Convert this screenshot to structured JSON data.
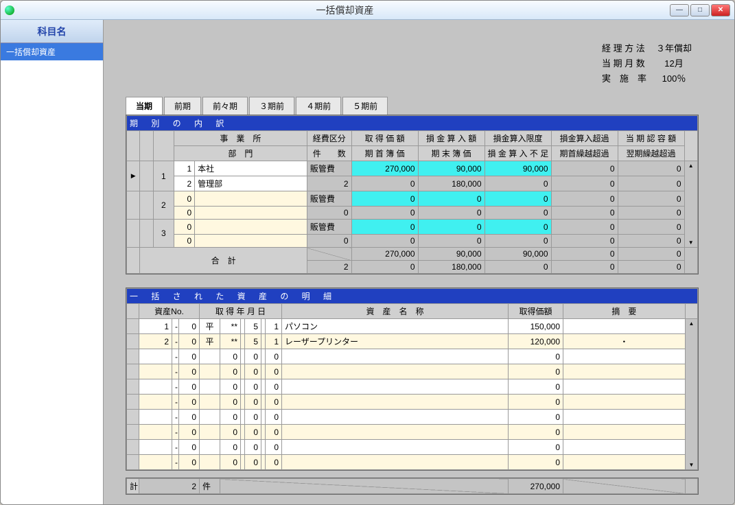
{
  "window": {
    "title": "一括償却資産"
  },
  "sidebar": {
    "header": "科目名",
    "selected_item": "一括償却資産"
  },
  "header": {
    "accounting_label": "経 理 方 法",
    "accounting_value": "３年償却",
    "months_label": "当 期 月 数",
    "months_value": "12月",
    "rate_label": "実　施　率",
    "rate_value": "100％"
  },
  "tabs": [
    {
      "label": "当期",
      "active": true
    },
    {
      "label": "前期",
      "active": false
    },
    {
      "label": "前々期",
      "active": false
    },
    {
      "label": "３期前",
      "active": false
    },
    {
      "label": "４期前",
      "active": false
    },
    {
      "label": "５期前",
      "active": false
    }
  ],
  "upper": {
    "title": "期 別 の 内 訳",
    "columns": {
      "office": "事　業　所",
      "dept": "部　門",
      "expense": "経費区分",
      "count": "件　　数",
      "acq1": "取 得 価 額",
      "acq2": "期 首 簿 価",
      "loss1": "損 金 算 入 額",
      "loss2": "期 末 簿 価",
      "limit1": "損金算入限度",
      "limit2": "損 金 算 入 不 足",
      "over1": "損金算入超過",
      "over2": "期首繰越超過",
      "allow1": "当 期 認 容 額",
      "allow2": "翌期繰越超過"
    },
    "rows": [
      {
        "idx": "1",
        "office_id": "1",
        "office_name": "本社",
        "dept_id": "2",
        "dept_name": "管理部",
        "expense": "販管費",
        "count": "2",
        "val1a": "270,000",
        "val1b": "0",
        "val2a": "90,000",
        "val2b": "180,000",
        "val3a": "90,000",
        "val3b": "0",
        "val4a": "0",
        "val4b": "0",
        "val5a": "0",
        "val5b": "0",
        "pointer": true
      },
      {
        "idx": "2",
        "office_id": "0",
        "office_name": "",
        "dept_id": "0",
        "dept_name": "",
        "expense": "販管費",
        "count": "0",
        "val1a": "0",
        "val1b": "0",
        "val2a": "0",
        "val2b": "0",
        "val3a": "0",
        "val3b": "0",
        "val4a": "0",
        "val4b": "0",
        "val5a": "0",
        "val5b": "0",
        "pointer": false
      },
      {
        "idx": "3",
        "office_id": "0",
        "office_name": "",
        "dept_id": "0",
        "dept_name": "",
        "expense": "販管費",
        "count": "0",
        "val1a": "0",
        "val1b": "0",
        "val2a": "0",
        "val2b": "0",
        "val3a": "0",
        "val3b": "0",
        "val4a": "0",
        "val4b": "0",
        "val5a": "0",
        "val5b": "0",
        "pointer": false
      }
    ],
    "total": {
      "label": "合　計",
      "count": "2",
      "val1a": "270,000",
      "val1b": "0",
      "val2a": "90,000",
      "val2b": "180,000",
      "val3a": "90,000",
      "val3b": "0",
      "val4a": "0",
      "val4b": "0",
      "val5a": "0",
      "val5b": "0"
    }
  },
  "lower": {
    "title": "一 括 さ れ た 資 産 の 明 細",
    "columns": {
      "asset_no": "資産No.",
      "acq_date": "取 得 年 月 日",
      "asset_name": "資　産　名　称",
      "acq_price": "取得価額",
      "remarks": "摘　要"
    },
    "rows": [
      {
        "no1": "1",
        "no2": "0",
        "era": "平",
        "y": "**",
        "m": "5",
        "d": "1",
        "name": "パソコン",
        "price": "150,000",
        "remarks": "",
        "white": true
      },
      {
        "no1": "2",
        "no2": "0",
        "era": "平",
        "y": "**",
        "m": "5",
        "d": "1",
        "name": "レーザープリンター",
        "price": "120,000",
        "remarks": "・",
        "white": false
      },
      {
        "no1": "",
        "no2": "0",
        "era": "",
        "y": "0",
        "m": "0",
        "d": "0",
        "name": "",
        "price": "0",
        "remarks": "",
        "white": true
      },
      {
        "no1": "",
        "no2": "0",
        "era": "",
        "y": "0",
        "m": "0",
        "d": "0",
        "name": "",
        "price": "0",
        "remarks": "",
        "white": false
      },
      {
        "no1": "",
        "no2": "0",
        "era": "",
        "y": "0",
        "m": "0",
        "d": "0",
        "name": "",
        "price": "0",
        "remarks": "",
        "white": true
      },
      {
        "no1": "",
        "no2": "0",
        "era": "",
        "y": "0",
        "m": "0",
        "d": "0",
        "name": "",
        "price": "0",
        "remarks": "",
        "white": false
      },
      {
        "no1": "",
        "no2": "0",
        "era": "",
        "y": "0",
        "m": "0",
        "d": "0",
        "name": "",
        "price": "0",
        "remarks": "",
        "white": true
      },
      {
        "no1": "",
        "no2": "0",
        "era": "",
        "y": "0",
        "m": "0",
        "d": "0",
        "name": "",
        "price": "0",
        "remarks": "",
        "white": false
      },
      {
        "no1": "",
        "no2": "0",
        "era": "",
        "y": "0",
        "m": "0",
        "d": "0",
        "name": "",
        "price": "0",
        "remarks": "",
        "white": true
      },
      {
        "no1": "",
        "no2": "0",
        "era": "",
        "y": "0",
        "m": "0",
        "d": "0",
        "name": "",
        "price": "0",
        "remarks": "",
        "white": false
      }
    ]
  },
  "totals": {
    "label": "計",
    "count": "2",
    "unit": "件",
    "price": "270,000"
  },
  "colors": {
    "title_blue": "#2040c0",
    "highlight_cyan": "#40f0f0",
    "cream": "#fff8e0",
    "bg_gray": "#c4c4c4",
    "sidebar_sel": "#3a7ae0"
  }
}
